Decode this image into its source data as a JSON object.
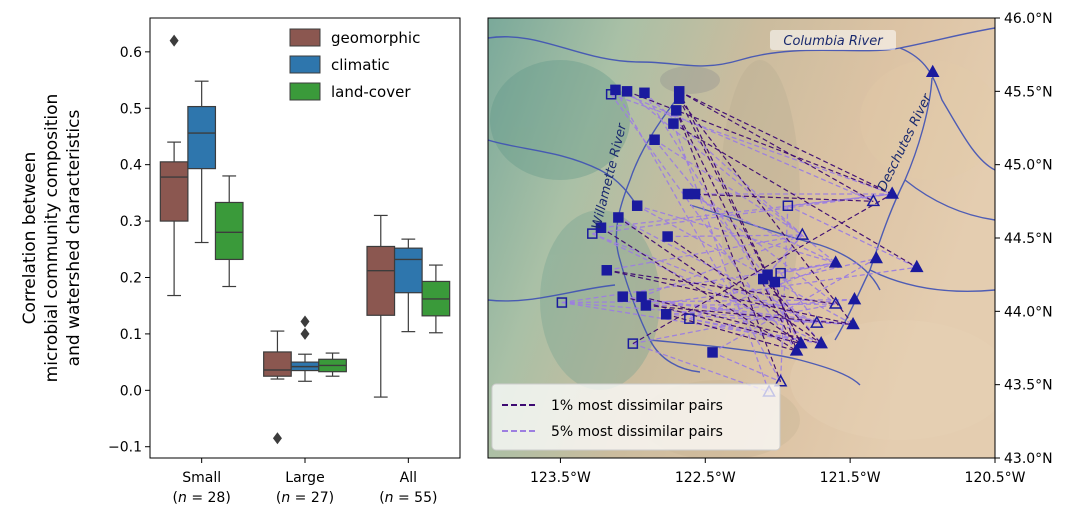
{
  "chart_data": [
    {
      "type": "box",
      "ylabel_lines": [
        "Correlation between",
        "microbial community composition",
        "and watershed characteristics"
      ],
      "ylim": [
        -0.12,
        0.66
      ],
      "yticks": [
        -0.1,
        0.0,
        0.1,
        0.2,
        0.3,
        0.4,
        0.5,
        0.6
      ],
      "ytick_labels": [
        "−0.1",
        "0.0",
        "0.1",
        "0.2",
        "0.3",
        "0.4",
        "0.5",
        "0.6"
      ],
      "categories": [
        {
          "name": "Small",
          "n_label": "(n = 28)",
          "n_prefix": "(",
          "n_var": "n",
          "n_rest": " = 28)"
        },
        {
          "name": "Large",
          "n_label": "(n = 27)",
          "n_prefix": "(",
          "n_var": "n",
          "n_rest": " = 27)"
        },
        {
          "name": "All",
          "n_label": "(n = 55)",
          "n_prefix": "(",
          "n_var": "n",
          "n_rest": " = 55)"
        }
      ],
      "legend_position": "top-right",
      "series": [
        {
          "name": "geomorphic",
          "color": "#8b5750",
          "boxes": [
            {
              "whislo": 0.168,
              "q1": 0.3,
              "med": 0.378,
              "q3": 0.405,
              "whishi": 0.44,
              "fliers": [
                0.62
              ]
            },
            {
              "whislo": 0.02,
              "q1": 0.025,
              "med": 0.036,
              "q3": 0.068,
              "whishi": 0.105,
              "fliers": [
                -0.085
              ]
            },
            {
              "whislo": -0.012,
              "q1": 0.133,
              "med": 0.212,
              "q3": 0.255,
              "whishi": 0.31,
              "fliers": []
            }
          ]
        },
        {
          "name": "climatic",
          "color": "#2e76ad",
          "boxes": [
            {
              "whislo": 0.262,
              "q1": 0.393,
              "med": 0.456,
              "q3": 0.503,
              "whishi": 0.548,
              "fliers": []
            },
            {
              "whislo": 0.016,
              "q1": 0.035,
              "med": 0.042,
              "q3": 0.05,
              "whishi": 0.064,
              "fliers": [
                0.1,
                0.122
              ]
            },
            {
              "whislo": 0.104,
              "q1": 0.173,
              "med": 0.232,
              "q3": 0.252,
              "whishi": 0.268,
              "fliers": []
            }
          ]
        },
        {
          "name": "land-cover",
          "color": "#3a9a3a",
          "boxes": [
            {
              "whislo": 0.184,
              "q1": 0.232,
              "med": 0.28,
              "q3": 0.333,
              "whishi": 0.38,
              "fliers": []
            },
            {
              "whislo": 0.025,
              "q1": 0.033,
              "med": 0.044,
              "q3": 0.055,
              "whishi": 0.066,
              "fliers": []
            },
            {
              "whislo": 0.102,
              "q1": 0.132,
              "med": 0.162,
              "q3": 0.193,
              "whishi": 0.222,
              "fliers": []
            }
          ]
        }
      ]
    },
    {
      "type": "map",
      "xlim": [
        -124.0,
        -120.5
      ],
      "ylim": [
        43.0,
        46.0
      ],
      "xticks": [
        -123.5,
        -122.5,
        -121.5,
        -120.5
      ],
      "xtick_labels": [
        "123.5°W",
        "122.5°W",
        "121.5°W",
        "120.5°W"
      ],
      "yticks": [
        43.0,
        43.5,
        44.0,
        44.5,
        45.0,
        45.5,
        46.0
      ],
      "ytick_labels": [
        "43.0°N",
        "43.5°N",
        "44.0°N",
        "44.5°N",
        "45.0°N",
        "45.5°N",
        "46.0°N"
      ],
      "river_labels": [
        "Columbia River",
        "Willamette River",
        "Deschutes River"
      ],
      "legend": [
        {
          "label": "1% most dissimilar pairs",
          "color": "#3d0a72",
          "style": "dashed"
        },
        {
          "label": "5% most dissimilar pairs",
          "color": "#9d7fe0",
          "style": "dashed"
        }
      ],
      "colors": {
        "marker": "#1a1a9e",
        "pair_1pct": "#3d0a72",
        "pair_5pct": "#9d7fe0",
        "river": "#3f51b5"
      },
      "sites": [
        {
          "lon": -122.68,
          "lat": 45.5,
          "shape": "square",
          "filled": true
        },
        {
          "lon": -122.68,
          "lat": 45.45,
          "shape": "square",
          "filled": true
        },
        {
          "lon": -122.7,
          "lat": 45.37,
          "shape": "square",
          "filled": true
        },
        {
          "lon": -122.72,
          "lat": 45.28,
          "shape": "square",
          "filled": true
        },
        {
          "lon": -122.92,
          "lat": 45.49,
          "shape": "square",
          "filled": true
        },
        {
          "lon": -123.04,
          "lat": 45.5,
          "shape": "square",
          "filled": true
        },
        {
          "lon": -123.12,
          "lat": 45.51,
          "shape": "square",
          "filled": true
        },
        {
          "lon": -123.15,
          "lat": 45.48,
          "shape": "square",
          "filled": false
        },
        {
          "lon": -122.85,
          "lat": 45.17,
          "shape": "square",
          "filled": true
        },
        {
          "lon": -122.62,
          "lat": 44.8,
          "shape": "square",
          "filled": true
        },
        {
          "lon": -122.57,
          "lat": 44.8,
          "shape": "square",
          "filled": true
        },
        {
          "lon": -122.97,
          "lat": 44.72,
          "shape": "square",
          "filled": true
        },
        {
          "lon": -123.1,
          "lat": 44.64,
          "shape": "square",
          "filled": true
        },
        {
          "lon": -123.22,
          "lat": 44.57,
          "shape": "square",
          "filled": true
        },
        {
          "lon": -123.28,
          "lat": 44.53,
          "shape": "square",
          "filled": false
        },
        {
          "lon": -122.76,
          "lat": 44.51,
          "shape": "square",
          "filled": true
        },
        {
          "lon": -121.93,
          "lat": 44.72,
          "shape": "square",
          "filled": false
        },
        {
          "lon": -123.18,
          "lat": 44.28,
          "shape": "square",
          "filled": true
        },
        {
          "lon": -122.1,
          "lat": 44.22,
          "shape": "square",
          "filled": true
        },
        {
          "lon": -122.07,
          "lat": 44.25,
          "shape": "square",
          "filled": true
        },
        {
          "lon": -121.98,
          "lat": 44.26,
          "shape": "square",
          "filled": false
        },
        {
          "lon": -122.02,
          "lat": 44.2,
          "shape": "square",
          "filled": true
        },
        {
          "lon": -123.07,
          "lat": 44.1,
          "shape": "square",
          "filled": true
        },
        {
          "lon": -122.94,
          "lat": 44.1,
          "shape": "square",
          "filled": true
        },
        {
          "lon": -122.91,
          "lat": 44.04,
          "shape": "square",
          "filled": true
        },
        {
          "lon": -123.49,
          "lat": 44.06,
          "shape": "square",
          "filled": false
        },
        {
          "lon": -122.77,
          "lat": 43.98,
          "shape": "square",
          "filled": true
        },
        {
          "lon": -122.61,
          "lat": 43.95,
          "shape": "square",
          "filled": false
        },
        {
          "lon": -123.0,
          "lat": 43.78,
          "shape": "square",
          "filled": false
        },
        {
          "lon": -122.45,
          "lat": 43.72,
          "shape": "square",
          "filled": true
        },
        {
          "lon": -120.93,
          "lat": 45.63,
          "shape": "triangle",
          "filled": true
        },
        {
          "lon": -121.21,
          "lat": 44.8,
          "shape": "triangle",
          "filled": true
        },
        {
          "lon": -121.34,
          "lat": 44.75,
          "shape": "triangle",
          "filled": false
        },
        {
          "lon": -121.83,
          "lat": 44.52,
          "shape": "triangle",
          "filled": false
        },
        {
          "lon": -121.6,
          "lat": 44.33,
          "shape": "triangle",
          "filled": true
        },
        {
          "lon": -121.32,
          "lat": 44.36,
          "shape": "triangle",
          "filled": true
        },
        {
          "lon": -121.04,
          "lat": 44.3,
          "shape": "triangle",
          "filled": true
        },
        {
          "lon": -121.47,
          "lat": 44.08,
          "shape": "triangle",
          "filled": true
        },
        {
          "lon": -121.6,
          "lat": 44.05,
          "shape": "triangle",
          "filled": false
        },
        {
          "lon": -121.73,
          "lat": 43.92,
          "shape": "triangle",
          "filled": false
        },
        {
          "lon": -121.48,
          "lat": 43.91,
          "shape": "triangle",
          "filled": true
        },
        {
          "lon": -121.7,
          "lat": 43.78,
          "shape": "triangle",
          "filled": true
        },
        {
          "lon": -121.84,
          "lat": 43.78,
          "shape": "triangle",
          "filled": true
        },
        {
          "lon": -121.87,
          "lat": 43.73,
          "shape": "triangle",
          "filled": true
        },
        {
          "lon": -121.98,
          "lat": 43.52,
          "shape": "triangle",
          "filled": false
        },
        {
          "lon": -122.06,
          "lat": 43.45,
          "shape": "triangle",
          "filled": false
        }
      ],
      "pairs_1pct": [
        [
          0,
          31
        ],
        [
          0,
          32
        ],
        [
          1,
          40
        ],
        [
          1,
          42
        ],
        [
          2,
          43
        ],
        [
          3,
          36
        ],
        [
          5,
          31
        ],
        [
          9,
          32
        ],
        [
          12,
          42
        ],
        [
          13,
          43
        ],
        [
          17,
          38
        ],
        [
          17,
          40
        ],
        [
          21,
          43
        ],
        [
          18,
          41
        ],
        [
          22,
          42
        ],
        [
          23,
          41
        ],
        [
          24,
          40
        ],
        [
          28,
          31
        ],
        [
          26,
          43
        ],
        [
          15,
          41
        ],
        [
          0,
          42
        ],
        [
          2,
          44
        ]
      ],
      "pairs_5pct": [
        [
          4,
          33
        ],
        [
          6,
          32
        ],
        [
          7,
          31
        ],
        [
          8,
          33
        ],
        [
          10,
          31
        ],
        [
          11,
          40
        ],
        [
          14,
          39
        ],
        [
          16,
          36
        ],
        [
          19,
          33
        ],
        [
          20,
          34
        ],
        [
          25,
          41
        ],
        [
          27,
          42
        ],
        [
          29,
          44
        ],
        [
          25,
          37
        ],
        [
          25,
          40
        ],
        [
          14,
          41
        ],
        [
          22,
          39
        ],
        [
          23,
          33
        ],
        [
          24,
          36
        ],
        [
          27,
          41
        ],
        [
          26,
          37
        ],
        [
          29,
          35
        ],
        [
          28,
          38
        ],
        [
          9,
          34
        ],
        [
          6,
          44
        ],
        [
          7,
          43
        ],
        [
          4,
          42
        ],
        [
          8,
          41
        ],
        [
          17,
          33
        ],
        [
          13,
          31
        ],
        [
          11,
          34
        ],
        [
          15,
          33
        ],
        [
          12,
          39
        ],
        [
          10,
          38
        ],
        [
          16,
          44
        ],
        [
          3,
          45
        ],
        [
          5,
          34
        ],
        [
          24,
          38
        ],
        [
          25,
          34
        ],
        [
          22,
          40
        ],
        [
          21,
          35
        ],
        [
          19,
          34
        ],
        [
          18,
          33
        ],
        [
          14,
          31
        ],
        [
          16,
          31
        ],
        [
          20,
          39
        ],
        [
          26,
          40
        ],
        [
          27,
          34
        ],
        [
          28,
          45
        ]
      ]
    }
  ]
}
